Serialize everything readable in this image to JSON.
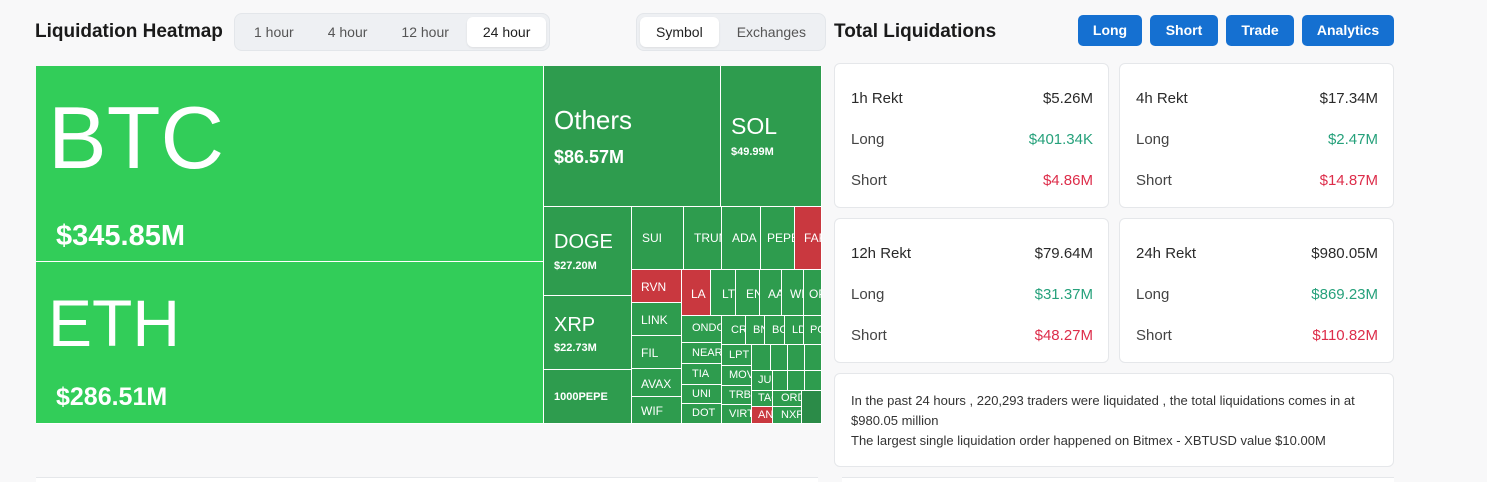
{
  "heatmap_section": {
    "title": "Liquidation Heatmap",
    "timeframes": [
      "1 hour",
      "4 hour",
      "12 hour",
      "24 hour"
    ],
    "active_timeframe": "24 hour",
    "groupings": [
      "Symbol",
      "Exchanges"
    ],
    "active_grouping": "Symbol"
  },
  "totals_section": {
    "title": "Total Liquidations",
    "buttons": [
      "Long",
      "Short",
      "Trade",
      "Analytics"
    ]
  },
  "heatmap": {
    "btc": {
      "symbol": "BTC",
      "value": "$345.85M"
    },
    "eth": {
      "symbol": "ETH",
      "value": "$286.51M"
    },
    "others": {
      "symbol": "Others",
      "value": "$86.57M"
    },
    "sol": {
      "symbol": "SOL",
      "value": "$49.99M"
    },
    "doge": {
      "symbol": "DOGE",
      "value": "$27.20M"
    },
    "xrp": {
      "symbol": "XRP",
      "value": "$22.73M"
    },
    "pepe": {
      "symbol": "1000PEPE"
    },
    "sui": "SUI",
    "trump": "TRUMP",
    "ada": "ADA",
    "pepe2": "PEPE",
    "fartcoin": "FARTCOIN",
    "rvn": "RVN",
    "link": "LINK",
    "fil": "FIL",
    "avax": "AVAX",
    "wif": "WIF",
    "la": "LA",
    "ltc": "LTC",
    "ena": "ENA",
    "aave": "AAVE",
    "w": "WLD",
    "op": "OP",
    "ondo": "ONDO",
    "near": "NEAR",
    "tia": "TIA",
    "uni": "UNI",
    "dot": "DOT",
    "crv": "CRV",
    "bnb": "BNB",
    "bch": "BCH",
    "ldo": "LDO",
    "pol": "POL",
    "lpt": "LPT",
    "mo": "MOVE",
    "tre": "TRB",
    "vir": "VIRTUAL",
    "ju": "JUP",
    "ta": "TAO",
    "an": "ANIME",
    "or": "ORDI",
    "nx": "NXPC"
  },
  "cards": [
    {
      "period": "1h Rekt",
      "total": "$5.26M",
      "long_label": "Long",
      "long": "$401.34K",
      "short_label": "Short",
      "short": "$4.86M"
    },
    {
      "period": "4h Rekt",
      "total": "$17.34M",
      "long_label": "Long",
      "long": "$2.47M",
      "short_label": "Short",
      "short": "$14.87M"
    },
    {
      "period": "12h Rekt",
      "total": "$79.64M",
      "long_label": "Long",
      "long": "$31.37M",
      "short_label": "Short",
      "short": "$48.27M"
    },
    {
      "period": "24h Rekt",
      "total": "$980.05M",
      "long_label": "Long",
      "long": "$869.23M",
      "short_label": "Short",
      "short": "$110.82M"
    }
  ],
  "summary": {
    "line1": "In the past 24 hours , 220,293 traders were liquidated , the total liquidations comes in at $980.05 million",
    "line2": "The largest single liquidation order happened on Bitmex - XBTUSD value $10.00M"
  }
}
